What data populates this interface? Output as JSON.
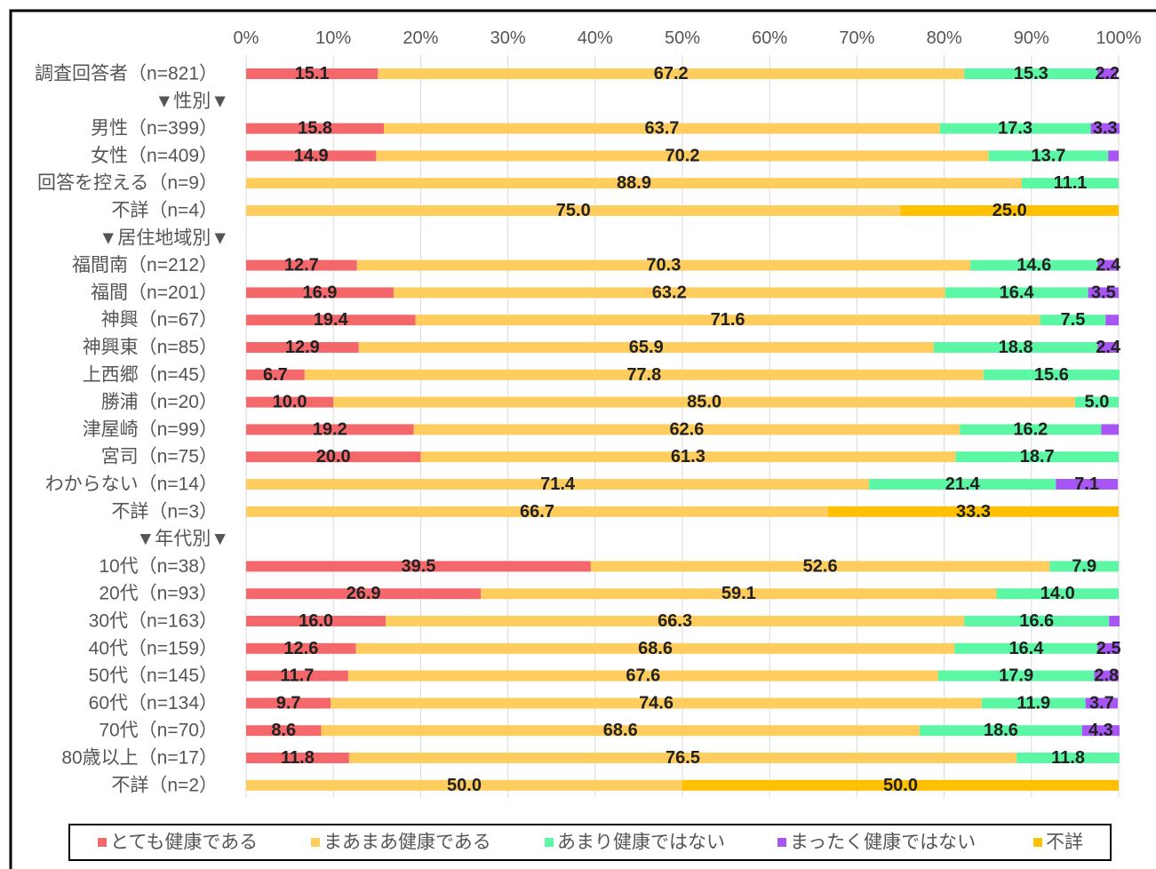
{
  "chart_data": {
    "type": "stacked_barh",
    "categories": [
      "調査回答者（n=821）",
      "▼性別▼",
      "男性（n=399）",
      "女性（n=409）",
      "回答を控える（n=9）",
      "不詳（n=4）",
      "▼居住地域別▼",
      "福間南（n=212）",
      "福間（n=201）",
      "神興（n=67）",
      "神興東（n=85）",
      "上西郷（n=45）",
      "勝浦（n=20）",
      "津屋崎（n=99）",
      "宮司（n=75）",
      "わからない（n=14）",
      "不詳（n=3）",
      "▼年代別▼",
      "10代（n=38）",
      "20代（n=93）",
      "30代（n=163）",
      "40代（n=159）",
      "50代（n=145）",
      "60代（n=134）",
      "70代（n=70）",
      "80歳以上（n=17）",
      "不詳（n=2）"
    ],
    "series": [
      {
        "name": "とても健康である",
        "color": "#f4686c",
        "values": [
          15.1,
          null,
          15.8,
          14.9,
          null,
          null,
          null,
          12.7,
          16.9,
          19.4,
          12.9,
          6.7,
          10.0,
          19.2,
          20.0,
          null,
          null,
          null,
          39.5,
          26.9,
          16.0,
          12.6,
          11.7,
          9.7,
          8.6,
          11.8,
          null
        ],
        "value_labels": [
          "15.1",
          null,
          "15.8",
          "14.9",
          null,
          null,
          null,
          "12.7",
          "16.9",
          "19.4",
          "12.9",
          "6.7",
          "10.0",
          "19.2",
          "20.0",
          null,
          null,
          null,
          "39.5",
          "26.9",
          "16.0",
          "12.6",
          "11.7",
          "9.7",
          "8.6",
          "11.8",
          null
        ]
      },
      {
        "name": "まあまあ健康である",
        "color": "#ffcc5e",
        "values": [
          67.2,
          null,
          63.7,
          70.2,
          88.9,
          75.0,
          null,
          70.3,
          63.2,
          71.6,
          65.9,
          77.8,
          85.0,
          62.6,
          61.3,
          71.4,
          66.7,
          null,
          52.6,
          59.1,
          66.3,
          68.6,
          67.6,
          74.6,
          68.6,
          76.5,
          50.0
        ],
        "value_labels": [
          "67.2",
          null,
          "63.7",
          "70.2",
          "88.9",
          "75.0",
          null,
          "70.3",
          "63.2",
          "71.6",
          "65.9",
          "77.8",
          "85.0",
          "62.6",
          "61.3",
          "71.4",
          "66.7",
          null,
          "52.6",
          "59.1",
          "66.3",
          "68.6",
          "67.6",
          "74.6",
          "68.6",
          "76.5",
          "50.0"
        ]
      },
      {
        "name": "あまり健康ではない",
        "color": "#5cf7a4",
        "values": [
          15.3,
          null,
          17.3,
          13.7,
          11.1,
          null,
          null,
          14.6,
          16.4,
          7.5,
          18.8,
          15.6,
          5.0,
          16.2,
          18.7,
          21.4,
          null,
          null,
          7.9,
          14.0,
          16.6,
          16.4,
          17.9,
          11.9,
          18.6,
          11.8,
          null
        ],
        "value_labels": [
          "15.3",
          null,
          "17.3",
          "13.7",
          "11.1",
          null,
          null,
          "14.6",
          "16.4",
          "7.5",
          "18.8",
          "15.6",
          "5.0",
          "16.2",
          "18.7",
          "21.4",
          null,
          null,
          "7.9",
          "14.0",
          "16.6",
          "16.4",
          "17.9",
          "11.9",
          "18.6",
          "11.8",
          null
        ]
      },
      {
        "name": "まったく健康ではない",
        "color": "#a855f5",
        "values": [
          2.2,
          null,
          3.3,
          1.2,
          null,
          null,
          null,
          2.4,
          3.5,
          1.5,
          2.4,
          null,
          null,
          2.0,
          null,
          7.1,
          null,
          null,
          null,
          null,
          1.2,
          2.5,
          2.8,
          3.7,
          4.3,
          null,
          null
        ],
        "value_labels": [
          "2.2",
          null,
          "3.3",
          null,
          null,
          null,
          null,
          "2.4",
          "3.5",
          null,
          "2.4",
          null,
          null,
          null,
          null,
          "7.1",
          null,
          null,
          null,
          null,
          null,
          "2.5",
          "2.8",
          "3.7",
          "4.3",
          null,
          null
        ]
      },
      {
        "name": "不詳",
        "color": "#ffc000",
        "values": [
          null,
          null,
          null,
          null,
          null,
          25.0,
          null,
          null,
          null,
          null,
          null,
          null,
          null,
          null,
          null,
          null,
          33.3,
          null,
          null,
          null,
          null,
          null,
          null,
          null,
          null,
          null,
          50.0
        ],
        "value_labels": [
          null,
          null,
          null,
          null,
          null,
          "25.0",
          null,
          null,
          null,
          null,
          null,
          null,
          null,
          null,
          null,
          null,
          "33.3",
          null,
          null,
          null,
          null,
          null,
          null,
          null,
          null,
          null,
          "50.0"
        ]
      }
    ],
    "xlim": [
      0,
      100
    ],
    "xticks": [
      {
        "value": 0,
        "label": "0%"
      },
      {
        "value": 10,
        "label": "10%"
      },
      {
        "value": 20,
        "label": "20%"
      },
      {
        "value": 30,
        "label": "30%"
      },
      {
        "value": 40,
        "label": "40%"
      },
      {
        "value": 50,
        "label": "50%"
      },
      {
        "value": 60,
        "label": "60%"
      },
      {
        "value": 70,
        "label": "70%"
      },
      {
        "value": 80,
        "label": "80%"
      },
      {
        "value": 90,
        "label": "90%"
      },
      {
        "value": 100,
        "label": "100%"
      }
    ],
    "grid": true,
    "legend": "bottom"
  }
}
